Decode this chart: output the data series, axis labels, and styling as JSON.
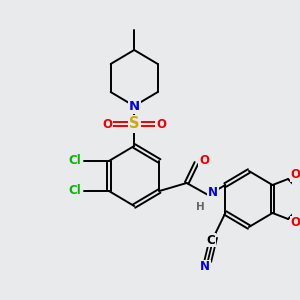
{
  "background_color": "#e8eaec",
  "figsize": [
    3.0,
    3.0
  ],
  "dpi": 100,
  "colors": {
    "C": "#000000",
    "N": "#0000ee",
    "O": "#ee0000",
    "S": "#ccaa00",
    "Cl": "#00bb00",
    "H": "#666666"
  },
  "label_fontsize": 8.5,
  "bond_lw": 1.4
}
